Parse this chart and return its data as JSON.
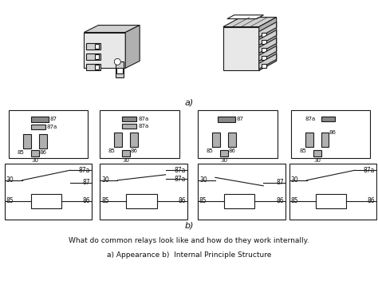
{
  "title_line1": "What do common relays look like and how do they work internally.",
  "title_line2": "a) Appearance b)  Internal Principle Structure",
  "label_a": "a)",
  "label_b": "b)",
  "bg_color": "#ffffff",
  "line_color": "#1a1a1a",
  "fill_light": "#e8e8e8",
  "fill_mid": "#d0d0d0",
  "fill_dark": "#b0b0b0",
  "pin_fill": "#888888",
  "text_color": "#111111"
}
